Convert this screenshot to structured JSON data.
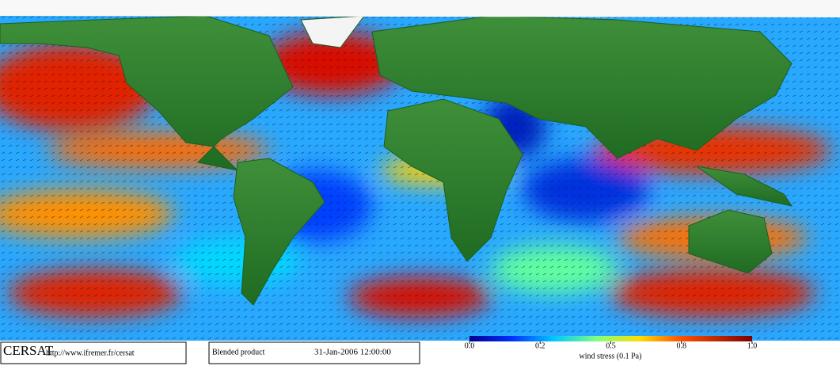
{
  "footer": {
    "logo": "CERSAT",
    "url": "http://www.ifremer.fr/cersat",
    "product": "Blended product",
    "date": "31-Jan-2006 12:00:00"
  },
  "colorbar": {
    "label": "wind stress (0.1 Pa)",
    "ticks": [
      {
        "value": 0,
        "label": "0.0"
      },
      0.2,
      0.5,
      0.8,
      {
        "value": 1,
        "label": "1.0"
      }
    ]
  }
}
